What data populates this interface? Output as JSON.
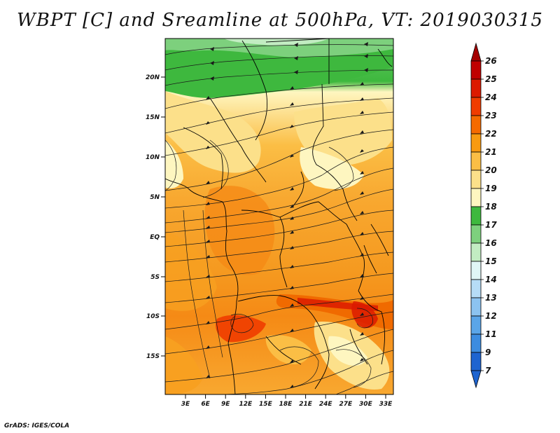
{
  "title": "WBPT [C] and Sreamline at 500hPa, VT: 2019030315",
  "credit": "GrADS: IGES/COLA",
  "map": {
    "lat_ticks": [
      "20N",
      "15N",
      "10N",
      "5N",
      "EQ",
      "5S",
      "10S",
      "15S"
    ],
    "lon_ticks": [
      "3E",
      "6E",
      "9E",
      "12E",
      "15E",
      "18E",
      "21E",
      "24E",
      "27E",
      "30E",
      "33E"
    ]
  },
  "colorbar": {
    "levels": [
      "26",
      "25",
      "24",
      "23",
      "22",
      "21",
      "20",
      "19",
      "18",
      "17",
      "16",
      "15",
      "14",
      "13",
      "12",
      "11",
      "9",
      "7"
    ],
    "colors": [
      "#a50000",
      "#c00000",
      "#dc1a00",
      "#f03c00",
      "#f56a00",
      "#f89a10",
      "#fbbe45",
      "#fce08a",
      "#fef6c0",
      "#3eb83e",
      "#7dd07d",
      "#c2ecc2",
      "#e0f6f6",
      "#b6dcf6",
      "#8cc3f0",
      "#5aa5e8",
      "#3c8ce0",
      "#1e64d0"
    ]
  }
}
